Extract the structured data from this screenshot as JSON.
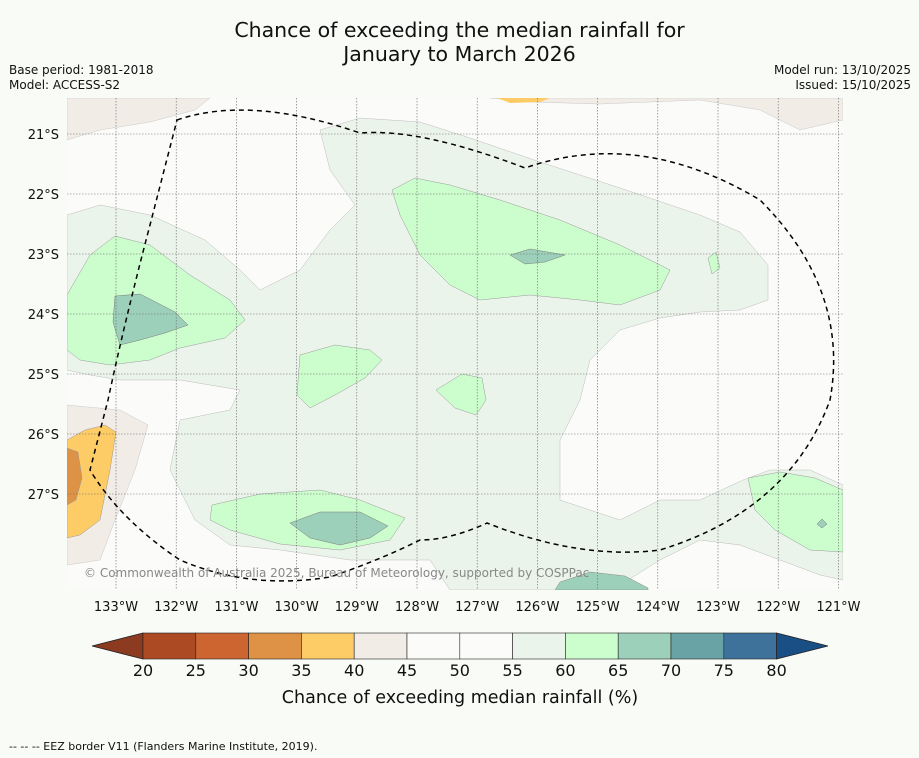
{
  "title": {
    "line1": "Chance of exceeding the median rainfall for",
    "line2": "January to March 2026"
  },
  "meta_left": {
    "base_period": "Base period: 1981-2018",
    "model": "Model: ACCESS-S2"
  },
  "meta_right": {
    "model_run": "Model run: 13/10/2025",
    "issued": "Issued: 15/10/2025"
  },
  "map": {
    "lon_labels": [
      "133°W",
      "132°W",
      "131°W",
      "130°W",
      "129°W",
      "128°W",
      "127°W",
      "126°W",
      "125°W",
      "124°W",
      "123°W",
      "122°W",
      "121°W"
    ],
    "lat_labels": [
      "21°S",
      "22°S",
      "23°S",
      "24°S",
      "25°S",
      "26°S",
      "27°S"
    ],
    "copyright": "© Commonwealth of Australia 2025, Bureau of Meteorology, supported by COSPPac",
    "legend_border": "EEZ border"
  },
  "colorbar": {
    "ticks": [
      "20",
      "25",
      "30",
      "35",
      "40",
      "45",
      "50",
      "55",
      "60",
      "65",
      "70",
      "75",
      "80"
    ],
    "colors": [
      "#ab4a23",
      "#cd6530",
      "#de9246",
      "#fdcc66",
      "#f1ece6",
      "#fbfcfa",
      "#fbfcfa",
      "#ebf4ea",
      "#ccfdcd",
      "#9dd0ba",
      "#6aa3a6",
      "#3f729b"
    ],
    "low_color": "#8c3b20",
    "high_color": "#1a4f86",
    "label": "Chance of exceeding median rainfall (%)"
  },
  "footer": "-- -- -- EEZ border V11 (Flanders Marine Institute, 2019)."
}
